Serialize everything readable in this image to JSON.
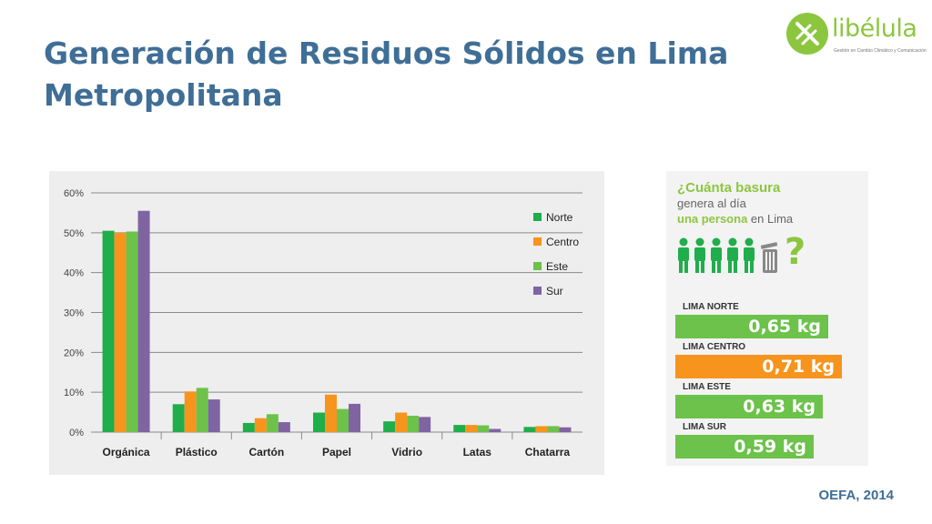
{
  "title": "Generación de Residuos Sólidos en Lima Metropolitana",
  "logo": {
    "name": "libélula",
    "tagline": "Gestión en Cambio Climático y Comunicación"
  },
  "source": "OEFA, 2014",
  "colors": {
    "norte": "#1fae4b",
    "centro": "#f7941d",
    "este": "#6cc24a",
    "sur": "#8064a2",
    "title": "#3f6e96",
    "accent": "#8cc63f"
  },
  "chart_data": {
    "type": "bar",
    "categories": [
      "Orgánica",
      "Plástico",
      "Cartón",
      "Papel",
      "Vidrio",
      "Latas",
      "Chatarra"
    ],
    "series": [
      {
        "name": "Norte",
        "values": [
          50.5,
          7.0,
          2.3,
          4.9,
          2.7,
          1.8,
          1.3
        ]
      },
      {
        "name": "Centro",
        "values": [
          50.0,
          10.2,
          3.5,
          9.4,
          4.9,
          1.8,
          1.5
        ]
      },
      {
        "name": "Este",
        "values": [
          50.3,
          11.1,
          4.5,
          5.8,
          4.1,
          1.7,
          1.5
        ]
      },
      {
        "name": "Sur",
        "values": [
          55.5,
          8.2,
          2.5,
          7.1,
          3.8,
          0.8,
          1.2
        ]
      }
    ],
    "yticks": [
      "0%",
      "10%",
      "20%",
      "30%",
      "40%",
      "50%",
      "60%"
    ],
    "ylim": [
      0,
      60
    ],
    "grid": true,
    "legend": "top-right"
  },
  "infographic": {
    "q1": "¿Cuánta basura",
    "q2": "genera al día",
    "q3_bold": "una persona",
    "q3_rest": " en Lima",
    "qmark": "?",
    "icons": [
      "person-icon",
      "trash-can-icon"
    ],
    "zones": [
      {
        "label": "LIMA NORTE",
        "value": "0,65 kg",
        "kg": 0.65,
        "color": "#6cc24a"
      },
      {
        "label": "LIMA CENTRO",
        "value": "0,71 kg",
        "kg": 0.71,
        "color": "#f7941d"
      },
      {
        "label": "LIMA ESTE",
        "value": "0,63 kg",
        "kg": 0.63,
        "color": "#6cc24a"
      },
      {
        "label": "LIMA SUR",
        "value": "0,59 kg",
        "kg": 0.59,
        "color": "#6cc24a"
      }
    ]
  }
}
